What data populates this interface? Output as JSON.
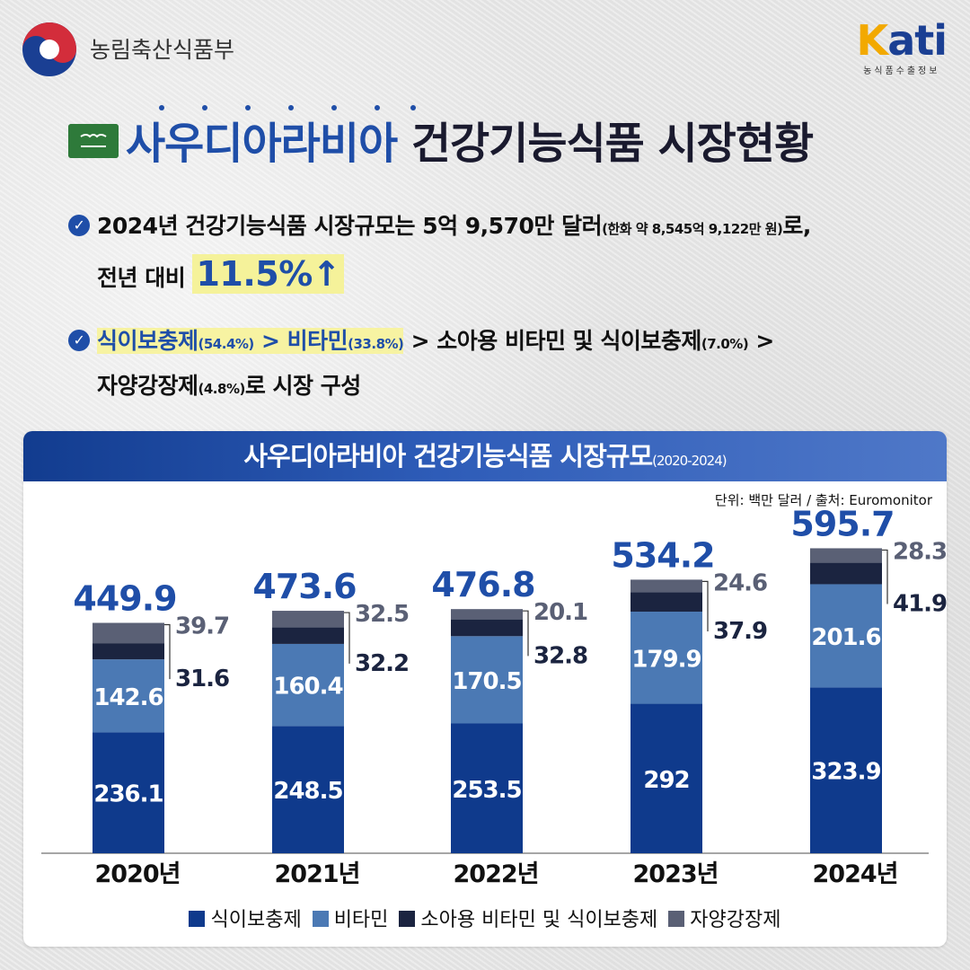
{
  "header": {
    "ministry": "농림축산식품부",
    "kati_logo": "Kati",
    "kati_sub": "농식품수출정보"
  },
  "title": {
    "country": "사우디아라비아",
    "rest": "건강기능식품 시장현황"
  },
  "bullets": {
    "b1_line1": "2024년 건강기능식품 시장규모는 5억 9,570만 달러",
    "b1_note": "(한화 약 8,545억 9,122만 원)",
    "b1_end": "로,",
    "b1_line2": "전년 대비",
    "b1_growth": "11.5%↑",
    "b2_item1": "식이보충제",
    "b2_pct1": "(54.4%)",
    "b2_gt1": " > ",
    "b2_item2": "비타민",
    "b2_pct2": "(33.8%)",
    "b2_gt2": " > 소아용 비타민 및 식이보충제",
    "b2_pct3": "(7.0%)",
    "b2_gt3": " >",
    "b2_line2a": "자양강장제",
    "b2_pct4": "(4.8%)",
    "b2_line2b": "로 시장 구성"
  },
  "colors": {
    "supplement": "#0f3a8c",
    "vitamin": "#4b79b4",
    "kids": "#1b2440",
    "tonic": "#5a6075",
    "total_text": "#1f4ea8"
  },
  "chart_data": {
    "type": "bar",
    "stacked": true,
    "title": "사우디아라비아 건강기능식품 시장규모",
    "subtitle": "(2020-2024)",
    "unit_note": "단위: 백만 달러 / 출처: Euromonitor",
    "categories": [
      "2020년",
      "2021년",
      "2022년",
      "2023년",
      "2024년"
    ],
    "totals": [
      "449.9",
      "473.6",
      "476.8",
      "534.2",
      "595.7"
    ],
    "series": [
      {
        "name": "식이보충제",
        "values": [
          236.1,
          248.5,
          253.5,
          292,
          323.9
        ]
      },
      {
        "name": "비타민",
        "values": [
          142.6,
          160.4,
          170.5,
          179.9,
          201.6
        ]
      },
      {
        "name": "소아용 비타민 및 식이보충제",
        "values": [
          31.6,
          32.2,
          32.8,
          37.9,
          41.9
        ]
      },
      {
        "name": "자양강장제",
        "values": [
          39.7,
          32.5,
          20.1,
          24.6,
          28.3
        ]
      }
    ],
    "legend_position": "bottom"
  }
}
